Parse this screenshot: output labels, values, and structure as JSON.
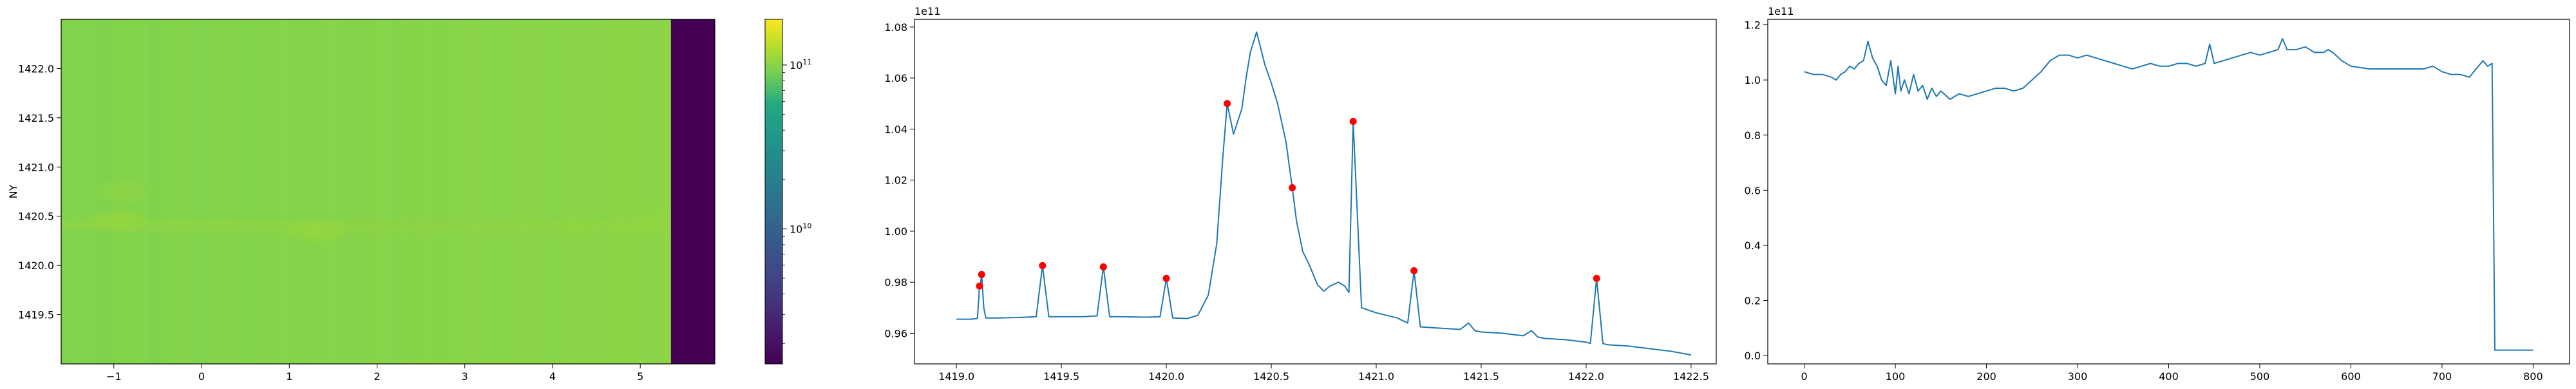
{
  "chart_data": [
    {
      "type": "heatmap",
      "title": "",
      "xlabel": "",
      "ylabel": "NY",
      "xlim": [
        -1.6,
        5.85
      ],
      "ylim": [
        1419.0,
        1422.5
      ],
      "x_tick_values": [
        -1,
        0,
        1,
        2,
        3,
        4,
        5
      ],
      "x_tick_labels": [
        "−1",
        "0",
        "1",
        "2",
        "3",
        "4",
        "5"
      ],
      "y_tick_values": [
        1419.5,
        1420.0,
        1420.5,
        1421.0,
        1421.5,
        1422.0
      ],
      "y_tick_labels": [
        "1419.5",
        "1420.0",
        "1420.5",
        "1421.0",
        "1421.5",
        "1422.0"
      ],
      "data_extent_x": [
        -1.6,
        5.35
      ],
      "empty_region_x": [
        5.35,
        5.85
      ],
      "background_value": 97000000000.0,
      "bright_band": {
        "y_center": [
          1420.45,
          1420.3,
          1420.4
        ],
        "y_width": 0.08,
        "hot_spots": [
          {
            "x": -0.95,
            "y": 1420.45,
            "peak_value": 107000000000.0
          },
          {
            "x": -0.9,
            "y": 1420.75,
            "peak_value": 103000000000.0
          },
          {
            "x": 1.3,
            "y": 1420.35,
            "peak_value": 107000000000.0
          },
          {
            "x": 5.3,
            "y": 1420.47,
            "peak_value": 105000000000.0
          }
        ]
      },
      "colormap": "viridis",
      "colorbar": {
        "scale": "log",
        "range": [
          1500000000.0,
          190000000000.0
        ],
        "tick_values": [
          10000000000.0,
          100000000000.0
        ],
        "tick_bases": [
          "10",
          "10"
        ],
        "tick_exponents": [
          "10",
          "11"
        ]
      }
    },
    {
      "type": "line",
      "title": "",
      "xlabel": "",
      "ylabel": "",
      "offset_text": "1e11",
      "offset_multiplier": 100000000000.0,
      "xlim": [
        1418.8,
        1422.62
      ],
      "ylim": [
        0.948,
        1.083
      ],
      "x_tick_values": [
        1419.0,
        1419.5,
        1420.0,
        1420.5,
        1421.0,
        1421.5,
        1422.0,
        1422.5
      ],
      "x_tick_labels": [
        "1419.0",
        "1419.5",
        "1420.0",
        "1420.5",
        "1421.0",
        "1421.5",
        "1422.0",
        "1422.5"
      ],
      "y_tick_values": [
        0.96,
        0.98,
        1.0,
        1.02,
        1.04,
        1.06,
        1.08
      ],
      "y_tick_labels": [
        "0.96",
        "0.98",
        "1.00",
        "1.02",
        "1.04",
        "1.06",
        "1.08"
      ],
      "line_color": "#1f77b4",
      "marker_color": "#ff0000",
      "x": [
        1419.0,
        1419.07,
        1419.1,
        1419.11,
        1419.115,
        1419.12,
        1419.13,
        1419.14,
        1419.2,
        1419.3,
        1419.38,
        1419.41,
        1419.44,
        1419.5,
        1419.6,
        1419.67,
        1419.7,
        1419.73,
        1419.8,
        1419.9,
        1419.97,
        1420.0,
        1420.03,
        1420.1,
        1420.15,
        1420.2,
        1420.24,
        1420.27,
        1420.29,
        1420.32,
        1420.36,
        1420.38,
        1420.4,
        1420.43,
        1420.47,
        1420.5,
        1420.53,
        1420.57,
        1420.6,
        1420.62,
        1420.65,
        1420.68,
        1420.72,
        1420.75,
        1420.78,
        1420.82,
        1420.85,
        1420.87,
        1420.89,
        1420.93,
        1421.0,
        1421.1,
        1421.15,
        1421.18,
        1421.21,
        1421.3,
        1421.4,
        1421.44,
        1421.47,
        1421.5,
        1421.6,
        1421.7,
        1421.74,
        1421.77,
        1421.8,
        1421.9,
        1422.0,
        1422.02,
        1422.05,
        1422.08,
        1422.1,
        1422.2,
        1422.3,
        1422.4,
        1422.5
      ],
      "y": [
        0.9655,
        0.9655,
        0.9658,
        0.9785,
        0.98,
        0.983,
        0.97,
        0.966,
        0.966,
        0.9662,
        0.9665,
        0.9865,
        0.9665,
        0.9665,
        0.9665,
        0.9668,
        0.986,
        0.9665,
        0.9665,
        0.9663,
        0.9665,
        0.9815,
        0.966,
        0.9658,
        0.967,
        0.975,
        0.995,
        1.03,
        1.05,
        1.038,
        1.048,
        1.06,
        1.07,
        1.078,
        1.065,
        1.058,
        1.05,
        1.035,
        1.017,
        1.004,
        0.992,
        0.987,
        0.979,
        0.9765,
        0.9785,
        0.98,
        0.9785,
        0.976,
        1.043,
        0.97,
        0.968,
        0.966,
        0.964,
        0.9845,
        0.9625,
        0.962,
        0.9615,
        0.964,
        0.961,
        0.9605,
        0.96,
        0.959,
        0.961,
        0.9585,
        0.958,
        0.9575,
        0.9565,
        0.956,
        0.9815,
        0.956,
        0.9555,
        0.955,
        0.954,
        0.953,
        0.9515
      ],
      "peaks": [
        {
          "x": 1419.11,
          "y": 0.9785
        },
        {
          "x": 1419.12,
          "y": 0.983
        },
        {
          "x": 1419.41,
          "y": 0.9865
        },
        {
          "x": 1419.7,
          "y": 0.986
        },
        {
          "x": 1420.0,
          "y": 0.9815
        },
        {
          "x": 1420.29,
          "y": 1.05
        },
        {
          "x": 1420.6,
          "y": 1.017
        },
        {
          "x": 1420.89,
          "y": 1.043
        },
        {
          "x": 1421.18,
          "y": 0.9845
        },
        {
          "x": 1422.05,
          "y": 0.9815
        }
      ]
    },
    {
      "type": "line",
      "title": "",
      "xlabel": "",
      "ylabel": "",
      "offset_text": "1e11",
      "offset_multiplier": 100000000000.0,
      "xlim": [
        -40,
        840
      ],
      "ylim": [
        -0.03,
        1.22
      ],
      "x_tick_values": [
        0,
        100,
        200,
        300,
        400,
        500,
        600,
        700,
        800
      ],
      "x_tick_labels": [
        "0",
        "100",
        "200",
        "300",
        "400",
        "500",
        "600",
        "700",
        "800"
      ],
      "y_tick_values": [
        0.0,
        0.2,
        0.4,
        0.6,
        0.8,
        1.0,
        1.2
      ],
      "y_tick_labels": [
        "0.0",
        "0.2",
        "0.4",
        "0.6",
        "0.8",
        "1.0",
        "1.2"
      ],
      "line_color": "#1f77b4",
      "x": [
        0,
        10,
        20,
        30,
        35,
        40,
        45,
        50,
        55,
        60,
        65,
        70,
        75,
        80,
        85,
        90,
        95,
        100,
        103,
        106,
        110,
        115,
        120,
        125,
        130,
        135,
        140,
        145,
        150,
        160,
        170,
        180,
        190,
        200,
        210,
        220,
        230,
        240,
        250,
        260,
        270,
        280,
        290,
        300,
        310,
        320,
        330,
        340,
        350,
        360,
        370,
        380,
        390,
        400,
        410,
        420,
        430,
        440,
        445,
        450,
        460,
        470,
        480,
        490,
        500,
        510,
        520,
        525,
        530,
        540,
        550,
        560,
        570,
        575,
        580,
        590,
        600,
        620,
        640,
        660,
        680,
        690,
        700,
        710,
        720,
        730,
        740,
        745,
        750,
        755,
        758,
        760,
        780,
        800
      ],
      "y": [
        1.03,
        1.02,
        1.02,
        1.01,
        1.0,
        1.02,
        1.03,
        1.05,
        1.04,
        1.06,
        1.07,
        1.14,
        1.08,
        1.05,
        1.0,
        0.98,
        1.07,
        0.95,
        1.05,
        0.96,
        1.0,
        0.95,
        1.02,
        0.96,
        0.98,
        0.93,
        0.97,
        0.94,
        0.96,
        0.93,
        0.95,
        0.94,
        0.95,
        0.96,
        0.97,
        0.97,
        0.96,
        0.97,
        1.0,
        1.03,
        1.07,
        1.09,
        1.09,
        1.08,
        1.09,
        1.08,
        1.07,
        1.06,
        1.05,
        1.04,
        1.05,
        1.06,
        1.05,
        1.05,
        1.06,
        1.06,
        1.05,
        1.06,
        1.13,
        1.06,
        1.07,
        1.08,
        1.09,
        1.1,
        1.09,
        1.1,
        1.11,
        1.15,
        1.11,
        1.11,
        1.12,
        1.1,
        1.1,
        1.11,
        1.1,
        1.07,
        1.05,
        1.04,
        1.04,
        1.04,
        1.04,
        1.05,
        1.03,
        1.02,
        1.02,
        1.01,
        1.05,
        1.07,
        1.05,
        1.06,
        0.02,
        0.02,
        0.02,
        0.02
      ]
    }
  ]
}
